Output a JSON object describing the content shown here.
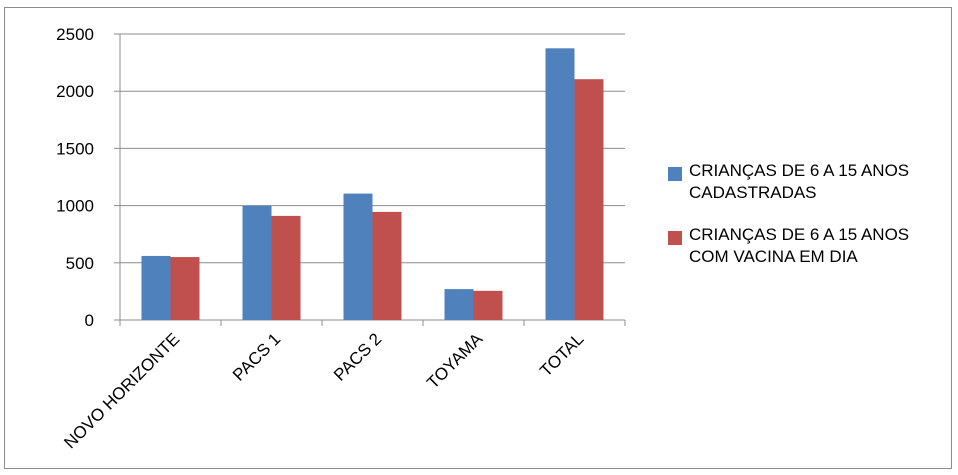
{
  "chart_data": {
    "type": "bar",
    "title": "",
    "xlabel": "",
    "ylabel": "",
    "ylim": [
      0,
      2500
    ],
    "yticks": [
      0,
      500,
      1000,
      1500,
      2000,
      2500
    ],
    "grid": true,
    "legend_position": "right",
    "categories": [
      "NOVO HORIZONTE",
      "PACS 1",
      "PACS 2",
      "TOYAMA",
      "TOTAL"
    ],
    "series": [
      {
        "name": "CRIANÇAS DE 6  A 15 ANOS CADASTRADAS",
        "color": "#4f81bd",
        "values": [
          560,
          1000,
          1105,
          270,
          2375
        ]
      },
      {
        "name": "CRIANÇAS DE 6  A 15 ANOS COM VACINA EM DIA",
        "color": "#c0504d",
        "values": [
          550,
          910,
          945,
          255,
          2105
        ]
      }
    ]
  }
}
